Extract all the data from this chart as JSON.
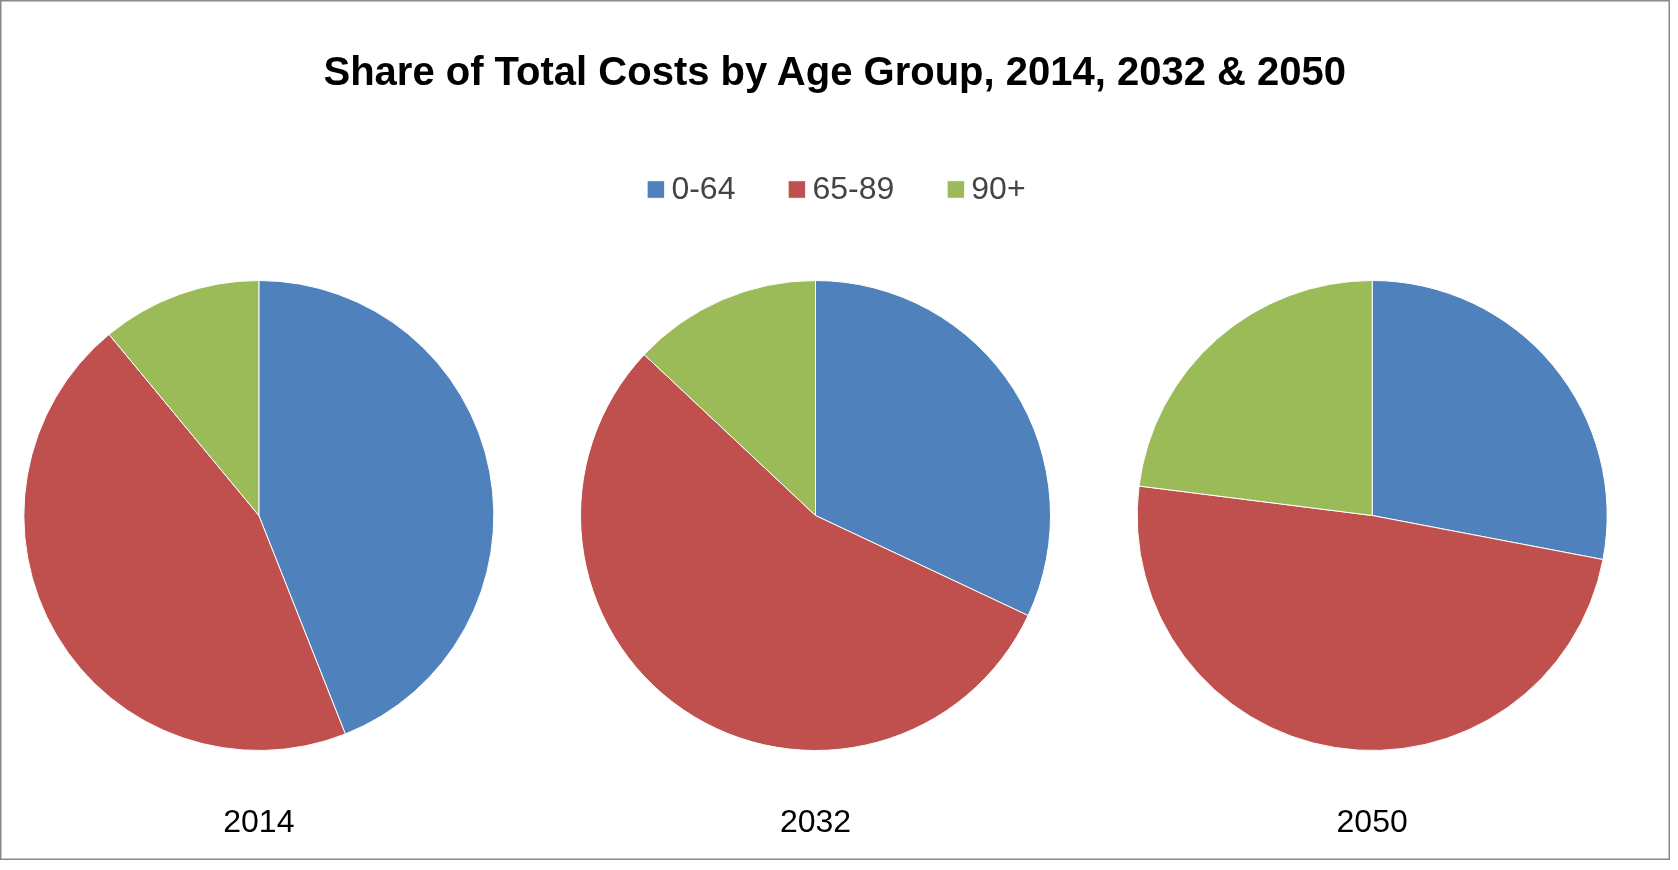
{
  "chart_data": [
    {
      "type": "pie",
      "title": "Share of Total Costs by Age Group, 2014, 2032 & 2050",
      "xlabel": "2014",
      "categories": [
        "0-64",
        "65-89",
        "90+"
      ],
      "values": [
        44,
        45,
        11
      ],
      "colors": [
        "#4f81bd",
        "#c0504d",
        "#9bbb59"
      ],
      "legend": "top"
    },
    {
      "type": "pie",
      "xlabel": "2032",
      "categories": [
        null,
        null,
        null
      ],
      "values": [
        32,
        55,
        13
      ],
      "colors": [
        "#4f81bd",
        "#c0504d",
        "#9bbb59"
      ]
    },
    {
      "type": "pie",
      "xlabel": "2050",
      "categories": [
        null,
        null,
        null
      ],
      "values": [
        28,
        49,
        23
      ],
      "colors": [
        "#4f81bd",
        "#c0504d",
        "#9bbb59"
      ]
    }
  ]
}
